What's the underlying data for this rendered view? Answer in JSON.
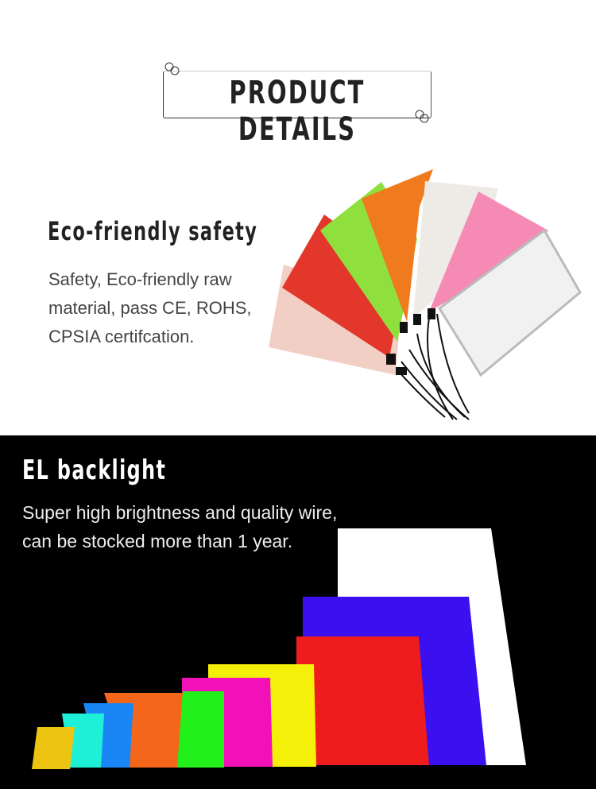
{
  "header": {
    "title": "PRODUCT DETAILS"
  },
  "section1": {
    "heading": "Eco-friendly safety",
    "lines": [
      "Safety, Eco-friendly raw",
      "material, pass CE, ROHS,",
      "CPSIA certifcation."
    ],
    "panel_colors": [
      "#f2cfc4",
      "#e3372b",
      "#8fe03c",
      "#f07b1e",
      "#eeebe6",
      "#f58ab5",
      "#f1f1f1"
    ]
  },
  "section2": {
    "heading": "EL backlight",
    "lines": [
      "Super high brightness and quality wire,",
      "can be stocked more than 1 year."
    ],
    "panel_colors": [
      "#ffffff",
      "#3a10f0",
      "#ee1c1c",
      "#f5f00a",
      "#f210b8",
      "#22f01a",
      "#f4661a",
      "#1a86f5",
      "#1ef0d8",
      "#ecc411"
    ]
  }
}
